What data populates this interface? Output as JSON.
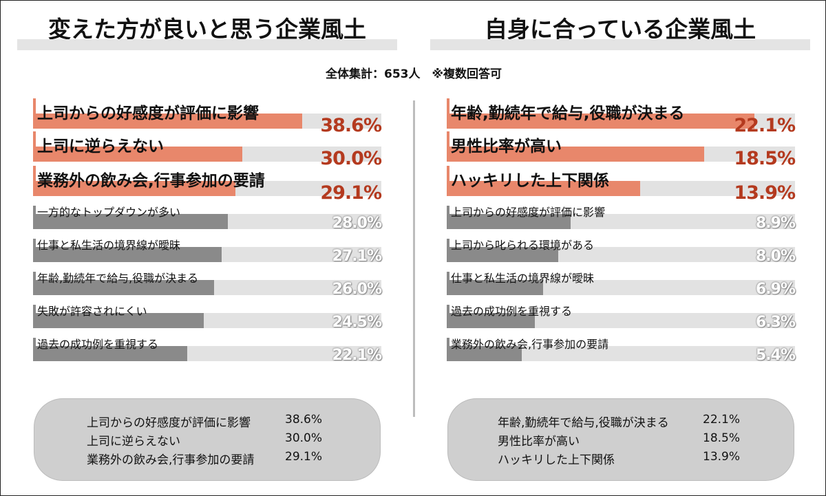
{
  "titles": {
    "left": "変えた方が良いと思う企業風土",
    "right": "自身に合っている企業風土"
  },
  "subtitle": "全体集計：653人　※複数回答可",
  "chart_data": [
    {
      "type": "bar",
      "title": "変えた方が良いと思う企業風土",
      "categories": [
        "上司からの好感度が評価に影響",
        "上司に逆らえない",
        "業務外の飲み会,行事参加の要請",
        "一方的なトップダウンが多い",
        "仕事と私生活の境界線が曖昧",
        "年齢,勤続年で給与,役職が決まる",
        "失敗が許容されにくい",
        "過去の成功例を重視する"
      ],
      "values": [
        38.6,
        30.0,
        29.1,
        28.0,
        27.1,
        26.0,
        24.5,
        22.1
      ],
      "value_labels": [
        "38.6%",
        "30.0%",
        "29.1%",
        "28.0%",
        "27.1%",
        "26.0%",
        "24.5%",
        "22.1%"
      ],
      "highlight_count": 3,
      "xlim": [
        0,
        50
      ]
    },
    {
      "type": "bar",
      "title": "自身に合っている企業風土",
      "categories": [
        "年齢,勤続年で給与,役職が決まる",
        "男性比率が高い",
        "ハッキリした上下関係",
        "上司からの好感度が評価に影響",
        "上司から叱られる環境がある",
        "仕事と私生活の境界線が曖昧",
        "過去の成功例を重視する",
        "業務外の飲み会,行事参加の要請"
      ],
      "values": [
        22.1,
        18.5,
        13.9,
        8.9,
        8.0,
        6.9,
        6.3,
        5.4
      ],
      "value_labels": [
        "22.1%",
        "18.5%",
        "13.9%",
        "8.9%",
        "8.0%",
        "6.9%",
        "6.3%",
        "5.4%"
      ],
      "highlight_count": 3,
      "xlim": [
        0,
        25
      ]
    }
  ],
  "summaries": [
    [
      {
        "label": "上司からの好感度が評価に影響",
        "value": "38.6%"
      },
      {
        "label": "上司に逆らえない",
        "value": "30.0%"
      },
      {
        "label": "業務外の飲み会,行事参加の要請",
        "value": "29.1%"
      }
    ],
    [
      {
        "label": "年齢,勤続年で給与,役職が決まる",
        "value": "22.1%"
      },
      {
        "label": "男性比率が高い",
        "value": "18.5%"
      },
      {
        "label": "ハッキリした上下関係",
        "value": "13.9%"
      }
    ]
  ],
  "colors": {
    "highlight_bar": "#e8876b",
    "normal_bar": "#8a8a8a",
    "track": "#e2e2e2",
    "highlight_value": "#b43a1f"
  }
}
